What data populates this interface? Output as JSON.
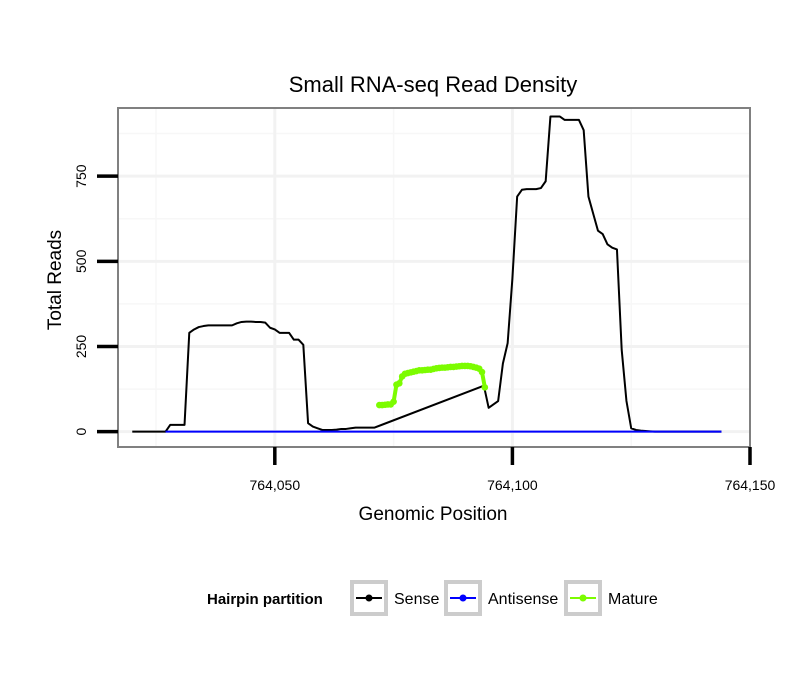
{
  "chart_data": {
    "type": "line",
    "title": "Small RNA-seq Read Density",
    "xlabel": "Genomic Position",
    "ylabel": "Total Reads",
    "xlim": [
      764017,
      764150
    ],
    "ylim": [
      -45,
      950
    ],
    "x_ticks": [
      764050,
      764100,
      764150
    ],
    "x_tick_labels": [
      "764,050",
      "764,100",
      "764,150"
    ],
    "y_ticks": [
      0,
      250,
      500,
      750
    ],
    "y_tick_labels": [
      "0",
      "250",
      "500",
      "750"
    ],
    "grid": true,
    "legend": {
      "title": "Hairpin partition",
      "position": "bottom",
      "entries": [
        {
          "name": "Sense",
          "color": "#000000"
        },
        {
          "name": "Antisense",
          "color": "#0000ff"
        },
        {
          "name": "Mature",
          "color": "#7cfc00"
        }
      ]
    },
    "series": [
      {
        "name": "Sense",
        "color": "#000000",
        "x": [
          764020,
          764027,
          764028,
          764031,
          764032,
          764033,
          764034,
          764035,
          764036,
          764037,
          764038,
          764039,
          764040,
          764041,
          764042,
          764043,
          764044,
          764045,
          764046,
          764047,
          764048,
          764049,
          764050,
          764051,
          764052,
          764053,
          764054,
          764055,
          764056,
          764057,
          764058,
          764059,
          764060,
          764061,
          764062,
          764063,
          764064,
          764065,
          764066,
          764067,
          764068,
          764069,
          764070,
          764071,
          764094,
          764095,
          764096,
          764097,
          764098,
          764099,
          764100,
          764101,
          764102,
          764103,
          764104,
          764105,
          764106,
          764107,
          764108,
          764109,
          764110,
          764111,
          764112,
          764113,
          764114,
          764115,
          764116,
          764117,
          764118,
          764119,
          764120,
          764121,
          764122,
          764123,
          764124,
          764125,
          764126,
          764127,
          764128,
          764129,
          764130,
          764131,
          764132,
          764133,
          764134,
          764135,
          764136,
          764137,
          764138,
          764139,
          764140,
          764141,
          764142,
          764143,
          764144
        ],
        "values": [
          0,
          0,
          20,
          20,
          290,
          300,
          307,
          310,
          312,
          312,
          312,
          312,
          312,
          312,
          318,
          322,
          323,
          323,
          322,
          322,
          320,
          305,
          300,
          290,
          290,
          290,
          270,
          270,
          255,
          25,
          15,
          10,
          5,
          5,
          5,
          6,
          8,
          8,
          10,
          12,
          12,
          12,
          12,
          12,
          135,
          70,
          80,
          90,
          200,
          260,
          450,
          690,
          710,
          712,
          712,
          712,
          715,
          735,
          925,
          925,
          925,
          915,
          915,
          915,
          915,
          885,
          690,
          640,
          590,
          580,
          550,
          540,
          535,
          240,
          90,
          10,
          5,
          3,
          2,
          1,
          0,
          0,
          0,
          0,
          0,
          0,
          0,
          0,
          0,
          0,
          0,
          0,
          0,
          0,
          0
        ]
      },
      {
        "name": "Antisense",
        "color": "#0000ff",
        "x": [
          764027,
          764144
        ],
        "values": [
          0,
          0
        ]
      },
      {
        "name": "Mature",
        "color": "#7cfc00",
        "x": [
          764072,
          764072.6,
          764073.2,
          764073.8,
          764074.4,
          764075,
          764075.6,
          764076.2,
          764076.8,
          764077.4,
          764078,
          764078.6,
          764079.2,
          764079.8,
          764080.4,
          764081,
          764081.6,
          764082.2,
          764082.8,
          764083.4,
          764084,
          764084.6,
          764085.2,
          764085.8,
          764086.4,
          764087,
          764087.6,
          764088.2,
          764088.8,
          764089.4,
          764090,
          764090.6,
          764091.2,
          764091.8,
          764092.4,
          764093,
          764093.6,
          764094.2
        ],
        "values": [
          78,
          78,
          79,
          80,
          80,
          88,
          138,
          142,
          162,
          170,
          172,
          174,
          176,
          178,
          180,
          180,
          181,
          182,
          182,
          184,
          186,
          187,
          188,
          188,
          189,
          190,
          190,
          191,
          192,
          193,
          193,
          193,
          192,
          190,
          188,
          185,
          175,
          130
        ]
      }
    ]
  }
}
